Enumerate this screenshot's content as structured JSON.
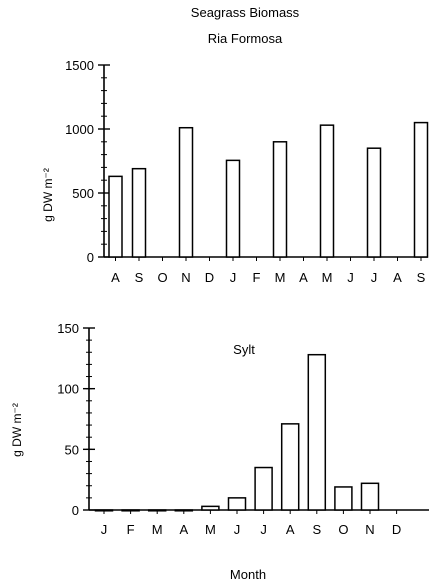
{
  "figure_title": "Seagrass Biomass",
  "xlabel": "Month",
  "chart_data": [
    {
      "type": "bar",
      "title": "Ria Formosa",
      "ylabel": "g DW m⁻²",
      "ylim": [
        0,
        1500
      ],
      "y_major_ticks": [
        0,
        500,
        1000,
        1500
      ],
      "y_minor_step": 100,
      "categories": [
        "A",
        "S",
        "O",
        "N",
        "D",
        "J",
        "F",
        "M",
        "A",
        "M",
        "J",
        "J",
        "A",
        "S"
      ],
      "series": [
        {
          "values": [
            630,
            690,
            null,
            1010,
            null,
            755,
            null,
            900,
            null,
            1030,
            null,
            850,
            null,
            1050
          ]
        }
      ],
      "grid": false
    },
    {
      "type": "bar",
      "title": "Sylt",
      "ylabel": "g DW m⁻²",
      "ylim": [
        0,
        150
      ],
      "y_major_ticks": [
        0,
        50,
        100,
        150
      ],
      "y_minor_step": 10,
      "categories": [
        "J",
        "F",
        "M",
        "A",
        "M",
        "J",
        "J",
        "A",
        "S",
        "O",
        "N",
        "D"
      ],
      "series": [
        {
          "values": [
            0,
            0,
            0,
            0,
            3,
            10,
            35,
            71,
            128,
            19,
            22,
            null
          ]
        }
      ],
      "grid": false
    }
  ]
}
